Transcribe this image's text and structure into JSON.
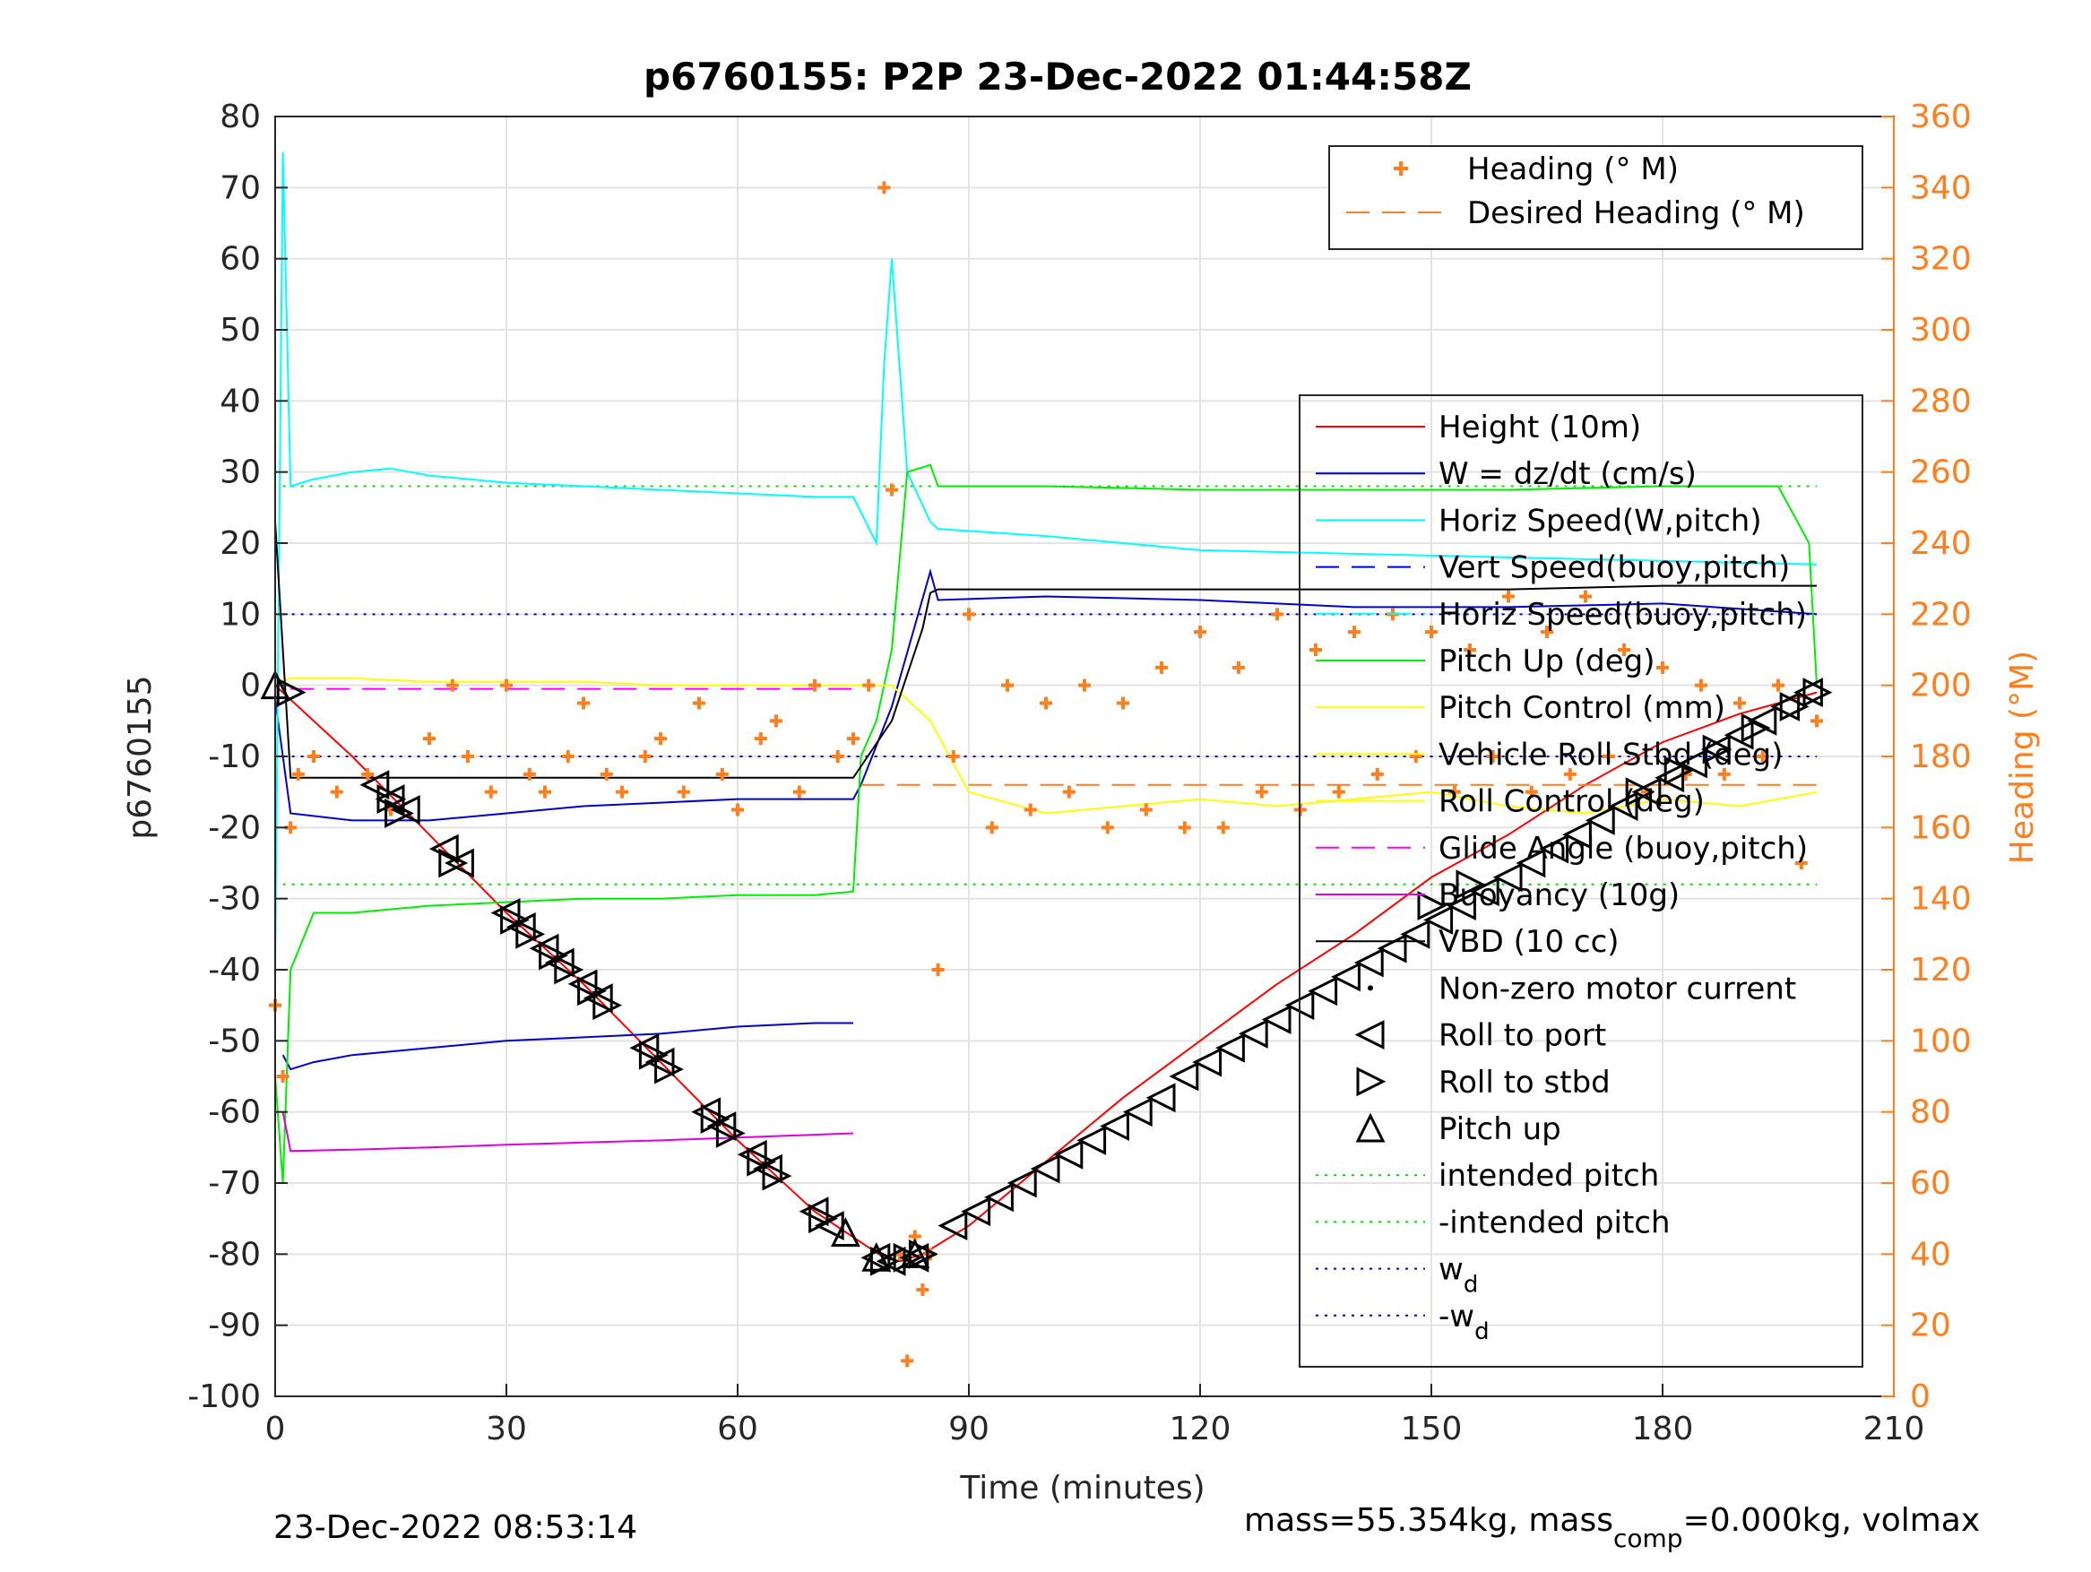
{
  "colors": {
    "height": "#ff0000",
    "w": "#0000cc",
    "horiz_speed": "#00ffff",
    "vert_speed": "#0000cc",
    "pitch_up": "#00ee00",
    "pitch_control": "#ffff00",
    "roll_stbd": "#ffff00",
    "roll_control": "#ffff00",
    "glide": "#ff00ff",
    "buoyancy": "#dd00dd",
    "vbd": "#000000",
    "heading": "#ff7f1f",
    "intended": "#00dd00",
    "wd": "#0000cc",
    "markers": "#000000",
    "right_axis": "#ff7f1f"
  },
  "footer": {
    "timestamp": "23-Dec-2022 08:53:14",
    "mass_prefix": "mass=55.354kg, mass",
    "mass_sub": "comp",
    "mass_suffix": "=0.000kg, volmax"
  },
  "chart_data": {
    "type": "line",
    "title": "p6760155: P2P 23-Dec-2022 01:44:58Z",
    "xlabel": "Time (minutes)",
    "ylabel": "p6760155",
    "y2label": "Heading (°M)",
    "xlim": [
      0,
      210
    ],
    "ylim": [
      -100,
      80
    ],
    "y2lim": [
      0,
      360
    ],
    "x_ticks": [
      0,
      30,
      60,
      90,
      120,
      150,
      180,
      210
    ],
    "y_ticks": [
      -100,
      -90,
      -80,
      -70,
      -60,
      -50,
      -40,
      -30,
      -20,
      -10,
      0,
      10,
      20,
      30,
      40,
      50,
      60,
      70,
      80
    ],
    "y2_ticks": [
      0,
      20,
      40,
      60,
      80,
      100,
      120,
      140,
      160,
      180,
      200,
      220,
      240,
      260,
      280,
      300,
      320,
      340,
      360
    ],
    "grid": true,
    "legend_right_entries": [
      "Heading (° M)",
      "Desired Heading (° M)"
    ],
    "legend_left_entries": [
      {
        "label": "Height (10m)",
        "sub": ""
      },
      {
        "label": "W = dz/dt (cm/s)",
        "sub": ""
      },
      {
        "label": "Horiz Speed(W,pitch)",
        "sub": ""
      },
      {
        "label": "Vert Speed(buoy,pitch)",
        "sub": ""
      },
      {
        "label": "Horiz Speed(buoy,pitch)",
        "sub": ""
      },
      {
        "label": "Pitch Up (deg)",
        "sub": ""
      },
      {
        "label": "Pitch Control (mm)",
        "sub": ""
      },
      {
        "label": "Vehicle Roll Stbd (deg)",
        "sub": ""
      },
      {
        "label": "Roll Control (deg)",
        "sub": ""
      },
      {
        "label": "Glide Angle (buoy,pitch)",
        "sub": ""
      },
      {
        "label": "Buoyancy (10g)",
        "sub": ""
      },
      {
        "label": "VBD (10 cc)",
        "sub": ""
      },
      {
        "label": "Non-zero motor current",
        "sub": ""
      },
      {
        "label": "Roll to port",
        "sub": ""
      },
      {
        "label": "Roll to stbd",
        "sub": ""
      },
      {
        "label": "Pitch up",
        "sub": ""
      },
      {
        "label": "intended pitch",
        "sub": ""
      },
      {
        "label": "-intended pitch",
        "sub": ""
      },
      {
        "label": "w",
        "sub": "d"
      },
      {
        "label": "-w",
        "sub": "d"
      }
    ],
    "series": [
      {
        "name": "Height (10m)",
        "axis": "left",
        "x": [
          0,
          10,
          20,
          30,
          40,
          50,
          60,
          70,
          79,
          81,
          84,
          90,
          100,
          110,
          120,
          130,
          140,
          150,
          160,
          170,
          180,
          190,
          200
        ],
        "y": [
          0,
          -10,
          -21,
          -32,
          -42,
          -53,
          -64,
          -74,
          -80.5,
          -81,
          -80,
          -76,
          -67,
          -58,
          -50,
          -42,
          -35,
          -27,
          -21,
          -14,
          -8,
          -4,
          -1
        ]
      },
      {
        "name": "W = dz/dt (cm/s)",
        "axis": "left",
        "x": [
          0,
          2,
          10,
          20,
          30,
          40,
          50,
          60,
          70,
          75,
          76,
          80,
          85,
          86,
          100,
          120,
          140,
          160,
          180,
          200
        ],
        "y": [
          -2,
          -18,
          -19,
          -19,
          -18,
          -17,
          -16.5,
          -16,
          -16,
          -16,
          -14,
          -3,
          16,
          12,
          12.5,
          12,
          11,
          11,
          11.5,
          10
        ]
      },
      {
        "name": "Horiz Speed(W,pitch)",
        "axis": "left",
        "x": [
          0,
          1,
          2,
          5,
          10,
          15,
          20,
          30,
          40,
          50,
          60,
          70,
          75,
          78,
          79,
          80,
          82,
          85,
          86,
          100,
          120,
          140,
          160,
          180,
          200
        ],
        "y": [
          -40,
          75,
          28,
          29,
          30,
          30.5,
          29.5,
          28.5,
          28,
          27.5,
          27,
          26.5,
          26.5,
          20,
          45,
          60,
          30,
          23,
          22,
          21,
          19,
          18.5,
          18,
          17.5,
          17
        ]
      },
      {
        "name": "Vert Speed(buoy,pitch)",
        "axis": "left",
        "x": [
          1,
          2,
          5,
          10,
          20,
          30,
          40,
          50,
          60,
          70,
          75
        ],
        "y": [
          -52,
          -54,
          -53,
          -52,
          -51,
          -50,
          -49.5,
          -49,
          -48,
          -47.5,
          -47.5
        ]
      },
      {
        "name": "Pitch Up (deg)",
        "axis": "left",
        "x": [
          0,
          1,
          2,
          5,
          10,
          20,
          30,
          40,
          50,
          60,
          70,
          75,
          76,
          78,
          80,
          82,
          85,
          86,
          100,
          120,
          140,
          160,
          180,
          195,
          199,
          200
        ],
        "y": [
          -55,
          -70,
          -40,
          -32,
          -32,
          -31,
          -30.5,
          -30,
          -30,
          -29.5,
          -29.5,
          -29,
          -10,
          -5,
          5,
          30,
          31,
          28,
          28,
          27.5,
          27.5,
          27.5,
          28,
          28,
          20,
          0
        ]
      },
      {
        "name": "Pitch Control (mm)",
        "axis": "left",
        "x": [
          0,
          2,
          10,
          20,
          30,
          40,
          50,
          60,
          70,
          75,
          80,
          85,
          90,
          100,
          110,
          120,
          130,
          140,
          150,
          160,
          170,
          180,
          190,
          200
        ],
        "y": [
          0,
          1,
          1,
          0.5,
          0.5,
          0.5,
          0,
          0,
          0,
          0,
          0,
          -5,
          -15,
          -18,
          -17,
          -16,
          -17,
          -16,
          -15,
          -17,
          -18,
          -16,
          -17,
          -15
        ]
      },
      {
        "name": "Buoyancy (10g)",
        "axis": "left",
        "x": [
          1,
          2,
          10,
          20,
          30,
          40,
          50,
          60,
          70,
          75
        ],
        "y": [
          -60,
          -65.5,
          -65.3,
          -65,
          -64.6,
          -64.3,
          -64,
          -63.6,
          -63.2,
          -63
        ]
      },
      {
        "name": "VBD (10 cc)",
        "axis": "left",
        "x": [
          0,
          1,
          2,
          10,
          20,
          30,
          40,
          50,
          60,
          70,
          75,
          80,
          84,
          85,
          86,
          100,
          120,
          140,
          160,
          180,
          200
        ],
        "y": [
          23,
          5,
          -13,
          -13,
          -13,
          -13,
          -13,
          -13,
          -13,
          -13,
          -13,
          -5,
          8,
          13,
          13.5,
          13.5,
          13.5,
          13.5,
          13.5,
          14,
          14
        ]
      },
      {
        "name": "Glide Angle (buoy,pitch)",
        "axis": "left",
        "x": [
          2,
          75
        ],
        "y": [
          -0.5,
          -0.5
        ]
      },
      {
        "name": "Heading (° M)",
        "axis": "right",
        "style": "marker",
        "x": [
          0,
          1,
          2,
          3,
          5,
          8,
          12,
          15,
          20,
          23,
          25,
          28,
          30,
          33,
          35,
          38,
          40,
          43,
          45,
          48,
          50,
          53,
          55,
          58,
          60,
          63,
          65,
          68,
          70,
          73,
          75,
          77,
          79,
          80,
          81,
          82,
          83,
          84,
          85,
          86,
          88,
          90,
          93,
          95,
          98,
          100,
          103,
          105,
          108,
          110,
          113,
          115,
          118,
          120,
          123,
          125,
          128,
          130,
          133,
          135,
          138,
          140,
          143,
          145,
          148,
          150,
          153,
          155,
          158,
          160,
          163,
          165,
          168,
          170,
          173,
          175,
          178,
          180,
          183,
          185,
          188,
          190,
          193,
          195,
          198,
          200
        ],
        "y": [
          110,
          90,
          160,
          175,
          180,
          170,
          175,
          165,
          185,
          200,
          180,
          170,
          200,
          175,
          170,
          180,
          195,
          175,
          170,
          180,
          185,
          170,
          195,
          175,
          165,
          185,
          190,
          170,
          200,
          180,
          185,
          200,
          340,
          255,
          40,
          10,
          45,
          30,
          40,
          120,
          180,
          220,
          160,
          200,
          165,
          195,
          170,
          200,
          160,
          195,
          165,
          205,
          160,
          215,
          160,
          205,
          170,
          220,
          165,
          210,
          170,
          215,
          175,
          220,
          180,
          215,
          170,
          210,
          180,
          225,
          170,
          215,
          175,
          225,
          180,
          210,
          170,
          205,
          175,
          200,
          175,
          195,
          180,
          200,
          150,
          190
        ]
      },
      {
        "name": "Desired Heading (° M)",
        "axis": "right",
        "style": "dashed",
        "x": [
          76,
          85,
          200
        ],
        "y": [
          172,
          172,
          172
        ]
      }
    ],
    "reference_lines": [
      {
        "name": "intended pitch",
        "y": 28
      },
      {
        "name": "-intended pitch",
        "y": -28
      },
      {
        "name": "w_d",
        "y": 10
      },
      {
        "name": "-w_d",
        "y": -10
      }
    ],
    "markers": {
      "roll_to_port": {
        "x": [
          13,
          15,
          17,
          22,
          24,
          30,
          32,
          35,
          37,
          40,
          42,
          48,
          50,
          56,
          58,
          62,
          64,
          70,
          72,
          78,
          80,
          83,
          88,
          91,
          94,
          97,
          100,
          103,
          106,
          109,
          112,
          115,
          118,
          121,
          124,
          127,
          130,
          133,
          136,
          139,
          142,
          145,
          148,
          151,
          154,
          157,
          160,
          163,
          166,
          169,
          172,
          175,
          178,
          181,
          184,
          187,
          190,
          193,
          196,
          199
        ],
        "y": [
          -14,
          -16,
          -17.5,
          -23,
          -25,
          -32,
          -34,
          -37,
          -39,
          -42,
          -44,
          -51,
          -53,
          -60,
          -62,
          -66,
          -68,
          -74,
          -76,
          -80.5,
          -81,
          -80.5,
          -76,
          -74,
          -72,
          -70,
          -68,
          -66,
          -64,
          -62,
          -60,
          -58,
          -55,
          -53,
          -51,
          -49,
          -47,
          -45,
          -43,
          -41,
          -39,
          -37,
          -35,
          -33,
          -31,
          -29,
          -27,
          -25,
          -23,
          -21,
          -19,
          -17,
          -15,
          -13,
          -11,
          -9,
          -7,
          -5,
          -3,
          -1
        ]
      },
      "roll_to_stbd": {
        "x": [
          2,
          15,
          16,
          23,
          31,
          33,
          36,
          38,
          41,
          43,
          49,
          51,
          57,
          59,
          63,
          65,
          71,
          79,
          82,
          84,
          150,
          155,
          177,
          182,
          187,
          192,
          197,
          200
        ],
        "y": [
          -1,
          -16,
          -18,
          -25,
          -33,
          -35,
          -38,
          -40,
          -43,
          -45,
          -52,
          -54,
          -61,
          -63,
          -67,
          -69,
          -75,
          -81,
          -80.5,
          -80,
          -31,
          -28,
          -15,
          -12,
          -9,
          -6,
          -3,
          -1
        ]
      },
      "pitch_up": {
        "x": [
          0,
          74,
          78,
          83
        ],
        "y": [
          0,
          -77,
          -80.5,
          -80
        ]
      }
    }
  }
}
